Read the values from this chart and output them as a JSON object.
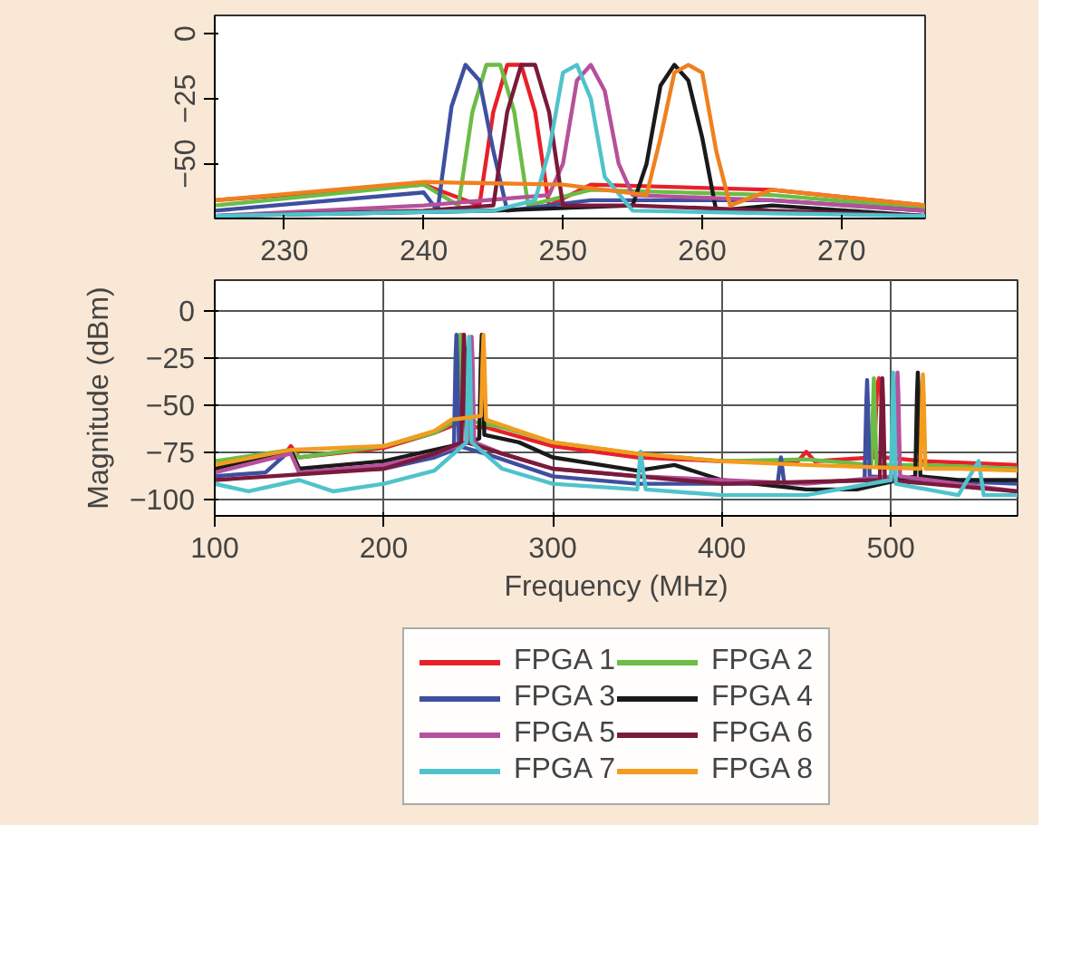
{
  "chart_data": [
    {
      "type": "line",
      "xlim": [
        225,
        276
      ],
      "ylim": [
        -71,
        7
      ],
      "xticks": [
        230,
        240,
        250,
        260,
        270
      ],
      "yticks": [
        0,
        -25,
        -50
      ],
      "grid": false,
      "legend": false,
      "series": [
        {
          "color": "#e8202a",
          "x": [
            225,
            240,
            244,
            245,
            246,
            247,
            248,
            249,
            252,
            265,
            276
          ],
          "values": [
            -64,
            -58,
            -66,
            -30,
            -12,
            -12,
            -30,
            -66,
            -58,
            -60,
            -66
          ]
        },
        {
          "color": "#6abd45",
          "x": [
            225,
            240,
            242.5,
            243.5,
            244.5,
            245.5,
            246.5,
            247.5,
            252,
            265,
            276
          ],
          "values": [
            -66,
            -58,
            -66,
            -30,
            -12,
            -12,
            -30,
            -66,
            -60,
            -62,
            -67
          ]
        },
        {
          "color": "#3f4f9f",
          "x": [
            225,
            240,
            241,
            242,
            243,
            244,
            245,
            246,
            252,
            265,
            276
          ],
          "values": [
            -68,
            -61,
            -68,
            -28,
            -12,
            -18,
            -45,
            -68,
            -64,
            -64,
            -68
          ]
        },
        {
          "color": "#1a1a1a",
          "x": [
            225,
            245,
            255,
            256,
            257,
            258,
            259,
            260,
            261,
            265,
            276
          ],
          "values": [
            -70,
            -68,
            -66,
            -50,
            -20,
            -12,
            -18,
            -40,
            -68,
            -66,
            -70
          ]
        },
        {
          "color": "#b5519b",
          "x": [
            225,
            240,
            249,
            250,
            251,
            252,
            253,
            254,
            255,
            265,
            276
          ],
          "values": [
            -70,
            -66,
            -62,
            -50,
            -18,
            -12,
            -22,
            -50,
            -62,
            -64,
            -68
          ]
        },
        {
          "color": "#7a1a3a",
          "x": [
            225,
            240,
            245,
            246,
            247,
            248,
            249,
            250,
            255,
            265,
            276
          ],
          "values": [
            -70,
            -68,
            -66,
            -30,
            -12,
            -12,
            -30,
            -66,
            -66,
            -68,
            -70
          ]
        },
        {
          "color": "#4fc3cc",
          "x": [
            225,
            245,
            248,
            249,
            250,
            251,
            252,
            253,
            255,
            265,
            276
          ],
          "values": [
            -70,
            -68,
            -64,
            -45,
            -15,
            -12,
            -25,
            -55,
            -68,
            -69,
            -70
          ]
        },
        {
          "color": "#f0801e",
          "x": [
            225,
            240,
            250,
            256,
            257,
            258,
            259,
            260,
            261,
            262,
            265,
            276
          ],
          "values": [
            -64,
            -57,
            -58,
            -62,
            -40,
            -15,
            -12,
            -15,
            -45,
            -66,
            -60,
            -66
          ]
        }
      ]
    },
    {
      "type": "line",
      "xlabel": "Frequency (MHz)",
      "ylabel": "Magnitude (dBm)",
      "xlim": [
        100,
        575
      ],
      "ylim": [
        -109,
        16
      ],
      "xticks": [
        100,
        200,
        300,
        400,
        500
      ],
      "yticks": [
        0,
        -25,
        -50,
        -75,
        -100
      ],
      "grid": true,
      "legend": "bottom",
      "series": [
        {
          "name": "FPGA 1",
          "color": "#e8202a",
          "x": [
            100,
            140,
            145,
            150,
            200,
            230,
            244,
            245.5,
            246.5,
            247.5,
            249,
            260,
            300,
            350,
            400,
            445,
            450,
            455,
            490,
            492,
            493,
            494,
            496,
            520,
            575
          ],
          "values": [
            -80,
            -78,
            -72,
            -78,
            -73,
            -65,
            -60,
            -20,
            -13,
            -20,
            -62,
            -62,
            -72,
            -78,
            -80,
            -80,
            -75,
            -80,
            -78,
            -40,
            -36,
            -40,
            -78,
            -80,
            -82
          ]
        },
        {
          "name": "FPGA 2",
          "color": "#6abd45",
          "x": [
            100,
            145,
            150,
            200,
            230,
            243.5,
            244.5,
            245,
            245.5,
            246.5,
            270,
            300,
            350,
            400,
            450,
            488.5,
            489.5,
            490,
            490.5,
            491.5,
            520,
            575
          ],
          "values": [
            -80,
            -74,
            -78,
            -72,
            -65,
            -58,
            -25,
            -13,
            -25,
            -58,
            -62,
            -70,
            -76,
            -80,
            -79,
            -82,
            -50,
            -36,
            -50,
            -82,
            -82,
            -84
          ]
        },
        {
          "name": "FPGA 3",
          "color": "#3f4f9f",
          "x": [
            100,
            130,
            145,
            150,
            200,
            230,
            241.5,
            242.5,
            243,
            243.5,
            244.5,
            260,
            300,
            350,
            400,
            433,
            435,
            437,
            484.5,
            485.5,
            486,
            486.5,
            487.5,
            520,
            575
          ],
          "values": [
            -88,
            -86,
            -74,
            -86,
            -84,
            -78,
            -74,
            -25,
            -13,
            -25,
            -72,
            -76,
            -88,
            -92,
            -92,
            -92,
            -78,
            -92,
            -90,
            -50,
            -37,
            -50,
            -88,
            -90,
            -92
          ]
        },
        {
          "name": "FPGA 4",
          "color": "#1a1a1a",
          "x": [
            100,
            145,
            150,
            200,
            230,
            250,
            256.5,
            257.5,
            258,
            258.5,
            259.5,
            280,
            300,
            350,
            372,
            400,
            450,
            480,
            514.5,
            515.5,
            516,
            516.5,
            517.5,
            540,
            575
          ],
          "values": [
            -84,
            -74,
            -84,
            -80,
            -74,
            -70,
            -68,
            -25,
            -13,
            -25,
            -66,
            -70,
            -78,
            -85,
            -82,
            -90,
            -95,
            -95,
            -88,
            -45,
            -33,
            -45,
            -88,
            -90,
            -90
          ]
        },
        {
          "name": "FPGA 5",
          "color": "#b5519b",
          "x": [
            100,
            145,
            150,
            200,
            230,
            250.5,
            251.5,
            252,
            252.5,
            253.5,
            270,
            300,
            350,
            400,
            450,
            502.5,
            503.5,
            504,
            504.5,
            505.5,
            540,
            575
          ],
          "values": [
            -86,
            -76,
            -86,
            -82,
            -76,
            -70,
            -25,
            -14,
            -25,
            -70,
            -76,
            -84,
            -88,
            -90,
            -92,
            -88,
            -45,
            -33,
            -45,
            -88,
            -92,
            -96
          ]
        },
        {
          "name": "FPGA 6",
          "color": "#7a1a3a",
          "x": [
            100,
            200,
            230,
            246,
            247,
            247.5,
            248,
            249,
            270,
            300,
            400,
            493.5,
            494.5,
            495,
            495.5,
            496.5,
            575
          ],
          "values": [
            -90,
            -84,
            -76,
            -70,
            -25,
            -13,
            -25,
            -70,
            -76,
            -84,
            -92,
            -90,
            -48,
            -36,
            -48,
            -90,
            -96
          ]
        },
        {
          "name": "FPGA 7",
          "color": "#4fc3cc",
          "x": [
            100,
            120,
            150,
            170,
            200,
            230,
            249,
            250,
            250.5,
            251,
            252,
            270,
            300,
            350,
            352,
            355,
            400,
            450,
            500,
            501,
            501.5,
            502,
            503,
            540,
            552,
            555,
            575
          ],
          "values": [
            -92,
            -96,
            -90,
            -96,
            -92,
            -85,
            -70,
            -25,
            -14,
            -25,
            -70,
            -84,
            -92,
            -95,
            -75,
            -95,
            -98,
            -98,
            -90,
            -50,
            -33,
            -50,
            -92,
            -98,
            -80,
            -98,
            -98
          ]
        },
        {
          "name": "FPGA 8",
          "color": "#f39c1f",
          "x": [
            100,
            145,
            200,
            230,
            240,
            257.5,
            258.5,
            259,
            259.5,
            260.5,
            280,
            300,
            350,
            400,
            450,
            517.5,
            518.5,
            519,
            519.5,
            520.5,
            540,
            575
          ],
          "values": [
            -82,
            -74,
            -72,
            -64,
            -58,
            -56,
            -25,
            -13,
            -25,
            -58,
            -64,
            -70,
            -76,
            -80,
            -82,
            -84,
            -45,
            -34,
            -45,
            -84,
            -84,
            -85
          ]
        }
      ]
    }
  ]
}
